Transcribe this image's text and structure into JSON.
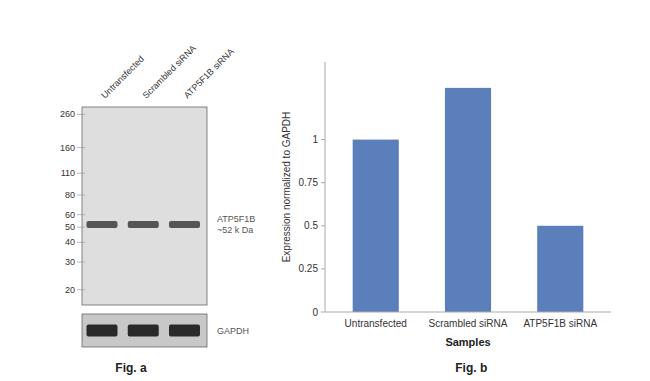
{
  "chart_data": [
    {
      "type": "blot",
      "title": "Fig. a",
      "categories": [
        "Untransfected",
        "Scrambled siRNA",
        "ATP5F1B siRNA"
      ],
      "values": [
        52,
        52,
        52
      ],
      "color": "#555555",
      "log": "y",
      "ylim": [
        16,
        290
      ],
      "yticks": [
        260,
        160,
        110,
        80,
        60,
        50,
        40,
        30,
        20
      ],
      "annotations": [
        "ATP5F1B\n~52 k Da",
        "GAPDH"
      ]
    },
    {
      "type": "bar",
      "title": "Fig. b",
      "categories": [
        "Untransfected",
        "Scrambled siRNA",
        "ATP5F1B siRNA"
      ],
      "values": [
        1.0,
        1.3,
        0.5
      ],
      "color": "#5b7fbb",
      "xlabel": "Samples",
      "ylabel": "Expression normalized to GAPDH",
      "ylim": [
        0,
        1.45
      ],
      "yticks": [
        0,
        0.25,
        0.5,
        0.75,
        1
      ],
      "grid": false
    }
  ]
}
